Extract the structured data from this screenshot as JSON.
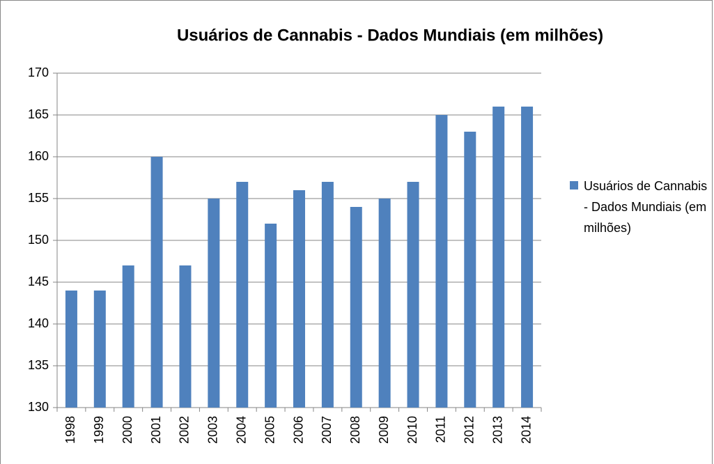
{
  "chart_data": {
    "type": "bar",
    "title": "Usuários de Cannabis - Dados Mundiais (em milhões)",
    "categories": [
      "1998",
      "1999",
      "2000",
      "2001",
      "2002",
      "2003",
      "2004",
      "2005",
      "2006",
      "2007",
      "2008",
      "2009",
      "2010",
      "2011",
      "2012",
      "2013",
      "2014"
    ],
    "series": [
      {
        "name": "Usuários de Cannabis - Dados Mundiais (em milhões)",
        "color": "#4f81bd",
        "values": [
          144,
          144,
          147,
          160,
          147,
          155,
          157,
          152,
          156,
          157,
          154,
          155,
          157,
          165,
          163,
          166,
          166
        ]
      }
    ],
    "ylim": [
      130,
      170
    ],
    "yticks": [
      130,
      135,
      140,
      145,
      150,
      155,
      160,
      165,
      170
    ],
    "grid": true,
    "legend": "right"
  }
}
